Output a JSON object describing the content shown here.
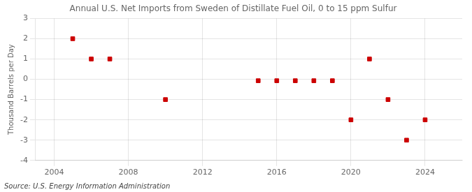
{
  "chart_data": {
    "type": "scatter",
    "title": "Annual U.S. Net Imports from Sweden of Distillate Fuel Oil, 0 to 15 ppm Sulfur",
    "ylabel": "Thousand Barrels per Day",
    "annotations": [
      "Source: U.S. Energy Information Administration"
    ],
    "x": [
      2005,
      2006,
      2007,
      2010,
      2015,
      2016,
      2017,
      2018,
      2019,
      2020,
      2021,
      2022,
      2023,
      2024
    ],
    "values": [
      2.0,
      1.0,
      1.0,
      -1.0,
      -0.07,
      -0.07,
      -0.07,
      -0.07,
      -0.07,
      -2.0,
      1.0,
      -1.0,
      -3.0,
      -2.0
    ],
    "color": "#cc0000",
    "marker": "square",
    "xlim": [
      2003,
      2026
    ],
    "ylim": [
      -4,
      3
    ],
    "xticks": [
      2004,
      2008,
      2012,
      2016,
      2020,
      2024
    ],
    "yticks": [
      -4,
      -3,
      -2,
      -1,
      0,
      1,
      2,
      3
    ],
    "grid": true
  }
}
